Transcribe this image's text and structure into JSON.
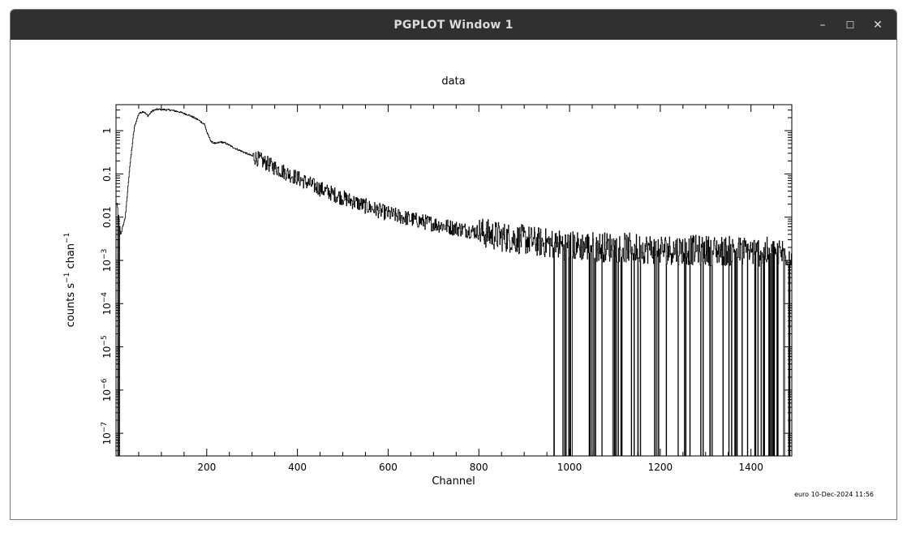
{
  "window": {
    "title": "PGPLOT Window 1",
    "controls": {
      "minimize": "–",
      "maximize": "☐",
      "close": "✕"
    }
  },
  "chart_data": {
    "type": "line",
    "title": "data",
    "xlabel": "Channel",
    "ylabel": "counts s^-1 chan^-1",
    "xlim": [
      0,
      1490
    ],
    "ylim": [
      3e-08,
      4
    ],
    "yscale": "log",
    "xticks": [
      200,
      400,
      600,
      800,
      1000,
      1200,
      1400
    ],
    "yticks_labels": [
      "1",
      "0.1",
      "0.01",
      "10^-3",
      "10^-4",
      "10^-5",
      "10^-6",
      "10^-7"
    ],
    "series": [
      {
        "x": [
          2,
          10,
          20,
          30,
          40,
          50,
          60,
          70,
          80,
          90,
          100,
          120,
          140,
          160,
          180,
          195,
          200,
          210,
          220,
          230,
          240,
          260,
          300,
          350,
          400,
          450,
          500,
          550,
          600,
          650,
          700,
          750,
          800,
          850,
          900,
          950,
          1000,
          1100,
          1200,
          1300,
          1400,
          1490
        ],
        "y": [
          0.02,
          0.004,
          0.01,
          0.15,
          1.2,
          2.5,
          2.8,
          2.2,
          2.9,
          3.1,
          3.1,
          3.0,
          2.7,
          2.3,
          1.8,
          1.4,
          0.9,
          0.55,
          0.5,
          0.55,
          0.52,
          0.4,
          0.26,
          0.14,
          0.08,
          0.045,
          0.028,
          0.018,
          0.012,
          0.009,
          0.007,
          0.0055,
          0.0045,
          0.0035,
          0.003,
          0.0025,
          0.0022,
          0.002,
          0.0018,
          0.0017,
          0.0016,
          0.0015
        ]
      }
    ],
    "footer_stamp": "euro 10-Dec-2024 11:56"
  }
}
